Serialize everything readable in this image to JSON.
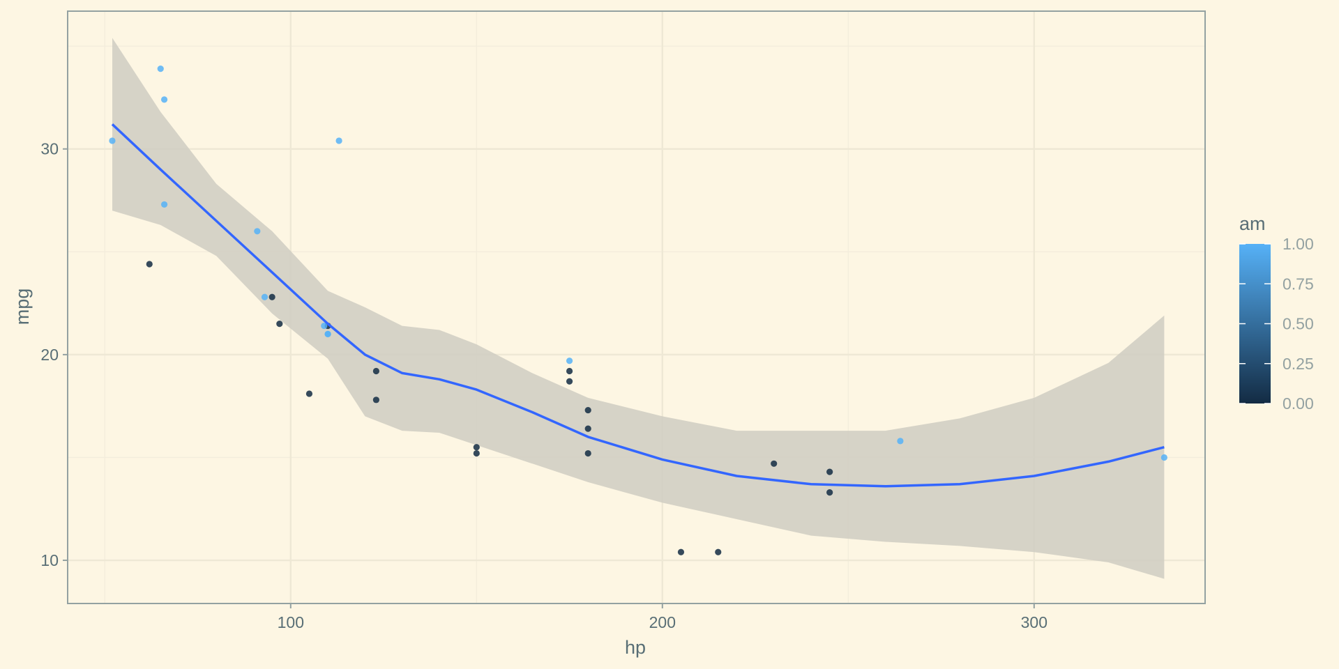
{
  "chart_data": {
    "type": "scatter",
    "title": "",
    "xlabel": "hp",
    "ylabel": "mpg",
    "xlim": [
      40,
      346
    ],
    "ylim": [
      7.9,
      36.7
    ],
    "x_breaks": [
      100,
      200,
      300
    ],
    "x_minor_breaks": [
      50,
      150,
      250
    ],
    "y_breaks": [
      10,
      20,
      30
    ],
    "y_minor_breaks": [
      15,
      25,
      35
    ],
    "x_tick_labels": [
      "100",
      "200",
      "300"
    ],
    "y_tick_labels": [
      "10",
      "20",
      "30"
    ],
    "grid": true,
    "points": [
      {
        "hp": 110,
        "mpg": 21.0,
        "am": 1
      },
      {
        "hp": 110,
        "mpg": 21.0,
        "am": 1
      },
      {
        "hp": 93,
        "mpg": 22.8,
        "am": 1
      },
      {
        "hp": 110,
        "mpg": 21.4,
        "am": 0
      },
      {
        "hp": 175,
        "mpg": 18.7,
        "am": 0
      },
      {
        "hp": 105,
        "mpg": 18.1,
        "am": 0
      },
      {
        "hp": 245,
        "mpg": 14.3,
        "am": 0
      },
      {
        "hp": 62,
        "mpg": 24.4,
        "am": 0
      },
      {
        "hp": 95,
        "mpg": 22.8,
        "am": 0
      },
      {
        "hp": 123,
        "mpg": 19.2,
        "am": 0
      },
      {
        "hp": 123,
        "mpg": 17.8,
        "am": 0
      },
      {
        "hp": 180,
        "mpg": 16.4,
        "am": 0
      },
      {
        "hp": 180,
        "mpg": 17.3,
        "am": 0
      },
      {
        "hp": 180,
        "mpg": 15.2,
        "am": 0
      },
      {
        "hp": 205,
        "mpg": 10.4,
        "am": 0
      },
      {
        "hp": 215,
        "mpg": 10.4,
        "am": 0
      },
      {
        "hp": 230,
        "mpg": 14.7,
        "am": 0
      },
      {
        "hp": 66,
        "mpg": 32.4,
        "am": 1
      },
      {
        "hp": 52,
        "mpg": 30.4,
        "am": 1
      },
      {
        "hp": 65,
        "mpg": 33.9,
        "am": 1
      },
      {
        "hp": 97,
        "mpg": 21.5,
        "am": 0
      },
      {
        "hp": 150,
        "mpg": 15.5,
        "am": 0
      },
      {
        "hp": 150,
        "mpg": 15.2,
        "am": 0
      },
      {
        "hp": 245,
        "mpg": 13.3,
        "am": 0
      },
      {
        "hp": 175,
        "mpg": 19.2,
        "am": 0
      },
      {
        "hp": 66,
        "mpg": 27.3,
        "am": 1
      },
      {
        "hp": 91,
        "mpg": 26.0,
        "am": 1
      },
      {
        "hp": 113,
        "mpg": 30.4,
        "am": 1
      },
      {
        "hp": 264,
        "mpg": 15.8,
        "am": 1
      },
      {
        "hp": 175,
        "mpg": 19.7,
        "am": 1
      },
      {
        "hp": 335,
        "mpg": 15.0,
        "am": 1
      },
      {
        "hp": 109,
        "mpg": 21.4,
        "am": 1
      }
    ],
    "smooth": {
      "x": [
        52,
        65,
        80,
        95,
        110,
        120,
        130,
        140,
        150,
        165,
        180,
        200,
        220,
        240,
        260,
        280,
        300,
        320,
        335
      ],
      "y": [
        31.2,
        29.0,
        26.5,
        24.0,
        21.5,
        20.0,
        19.1,
        18.8,
        18.3,
        17.2,
        16.0,
        14.9,
        14.1,
        13.7,
        13.6,
        13.7,
        14.1,
        14.8,
        15.5
      ],
      "lower": [
        27.0,
        26.3,
        24.8,
        22.0,
        19.8,
        17.0,
        16.3,
        16.2,
        15.6,
        14.7,
        13.8,
        12.8,
        12.0,
        11.2,
        10.9,
        10.7,
        10.4,
        9.9,
        9.1
      ],
      "upper": [
        35.4,
        31.8,
        28.3,
        26.0,
        23.1,
        22.3,
        21.4,
        21.2,
        20.5,
        19.1,
        17.9,
        17.0,
        16.3,
        16.3,
        16.3,
        16.9,
        17.9,
        19.6,
        21.9
      ]
    },
    "legend": {
      "title": "am",
      "placement": "right",
      "breaks": [
        1.0,
        0.75,
        0.5,
        0.25,
        0.0
      ],
      "labels": [
        "1.00",
        "0.75",
        "0.50",
        "0.25",
        "0.00"
      ],
      "low_color": "#132B43",
      "high_color": "#56B1F7"
    }
  },
  "colors": {
    "background": "#fdf6e3",
    "panel_border": "#93a1a1",
    "grid_major": "#eee8d5",
    "grid_minor": "#f3eddc",
    "smooth_line": "#3366ff",
    "ribbon": "#cfcdc2",
    "axis_text": "#586e75",
    "legend_text": "#93a1a1"
  }
}
